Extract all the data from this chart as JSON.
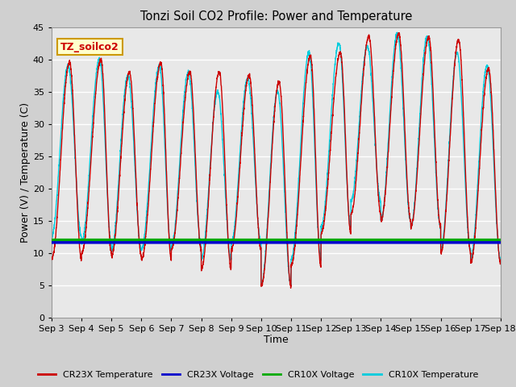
{
  "title": "Tonzi Soil CO2 Profile: Power and Temperature",
  "xlabel": "Time",
  "ylabel": "Power (V) / Temperature (C)",
  "ylim": [
    0,
    45
  ],
  "x_tick_labels": [
    "Sep 3",
    "Sep 4",
    "Sep 5",
    "Sep 6",
    "Sep 7",
    "Sep 8",
    "Sep 9",
    "Sep 10",
    "Sep 11",
    "Sep 12",
    "Sep 13",
    "Sep 14",
    "Sep 15",
    "Sep 16",
    "Sep 17",
    "Sep 18"
  ],
  "annotation_text": "TZ_soilco2",
  "annotation_color": "#cc0000",
  "annotation_bg": "#ffffcc",
  "annotation_border": "#cc9900",
  "fig_bg_color": "#d0d0d0",
  "plot_bg_color": "#e8e8e8",
  "grid_color": "#ffffff",
  "cr23x_temp_color": "#cc0000",
  "cr23x_volt_color": "#0000cc",
  "cr10x_volt_color": "#00aa00",
  "cr10x_temp_color": "#00ccdd",
  "cr23x_volt_value": 11.6,
  "cr10x_volt_value": 12.0,
  "legend_labels": [
    "CR23X Temperature",
    "CR23X Voltage",
    "CR10X Voltage",
    "CR10X Temperature"
  ],
  "n_days": 15,
  "yticks": [
    0,
    5,
    10,
    15,
    20,
    25,
    30,
    35,
    40,
    45
  ]
}
